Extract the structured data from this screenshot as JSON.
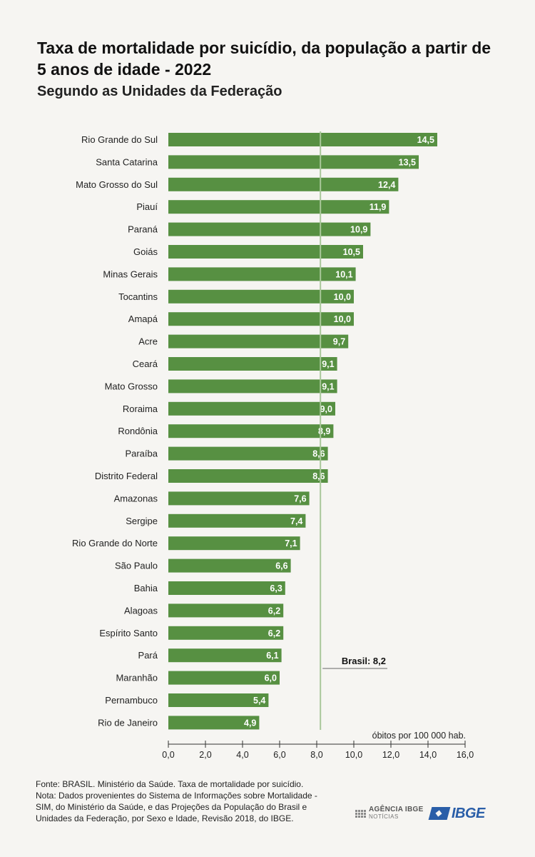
{
  "title": "Taxa de mortalidade por suicídio, da população a partir de 5 anos de idade - 2022",
  "subtitle": "Segundo as Unidades da Federação",
  "chart_data": {
    "type": "bar",
    "orientation": "horizontal",
    "categories": [
      "Rio Grande do Sul",
      "Santa Catarina",
      "Mato Grosso do Sul",
      "Piauí",
      "Paraná",
      "Goiás",
      "Minas Gerais",
      "Tocantins",
      "Amapá",
      "Acre",
      "Ceará",
      "Mato Grosso",
      "Roraima",
      "Rondônia",
      "Paraíba",
      "Distrito Federal",
      "Amazonas",
      "Sergipe",
      "Rio Grande do Norte",
      "São Paulo",
      "Bahia",
      "Alagoas",
      "Espírito Santo",
      "Pará",
      "Maranhão",
      "Pernambuco",
      "Rio de Janeiro"
    ],
    "values": [
      14.5,
      13.5,
      12.4,
      11.9,
      10.9,
      10.5,
      10.1,
      10.0,
      10.0,
      9.7,
      9.1,
      9.1,
      9.0,
      8.9,
      8.6,
      8.6,
      7.6,
      7.4,
      7.1,
      6.6,
      6.3,
      6.2,
      6.2,
      6.1,
      6.0,
      5.4,
      4.9
    ],
    "value_labels": [
      "14,5",
      "13,5",
      "12,4",
      "11,9",
      "10,9",
      "10,5",
      "10,1",
      "10,0",
      "10,0",
      "9,7",
      "9,1",
      "9,1",
      "9,0",
      "8,9",
      "8,6",
      "8,6",
      "7,6",
      "7,4",
      "7,1",
      "6,6",
      "6,3",
      "6,2",
      "6,2",
      "6,1",
      "6,0",
      "5,4",
      "4,9"
    ],
    "xlim": [
      0,
      16
    ],
    "x_ticks": [
      0,
      2,
      4,
      6,
      8,
      10,
      12,
      14,
      16
    ],
    "x_tick_labels": [
      "0,0",
      "2,0",
      "4,0",
      "6,0",
      "8,0",
      "10,0",
      "12,0",
      "14,0",
      "16,0"
    ],
    "xlabel": "óbitos por 100 000 hab.",
    "reference_line": {
      "value": 8.2,
      "label": "Brasil: 8,2"
    },
    "bar_color": "#579042",
    "reference_line_color": "#a9c79a",
    "grid": false
  },
  "footer": {
    "source": "Fonte: BRASIL. Ministério da Saúde. Taxa de mortalidade por suicídio.",
    "note": "Nota: Dados provenientes do Sistema de Informações sobre Mortalidade - SIM, do Ministério da Saúde, e das Projeções da População do Brasil e Unidades da Federação, por Sexo e Idade, Revisão 2018, do IBGE."
  },
  "logos": {
    "agencia_line1": "AGÊNCIA IBGE",
    "agencia_line2": "NOTÍCIAS",
    "ibge": "IBGE"
  }
}
